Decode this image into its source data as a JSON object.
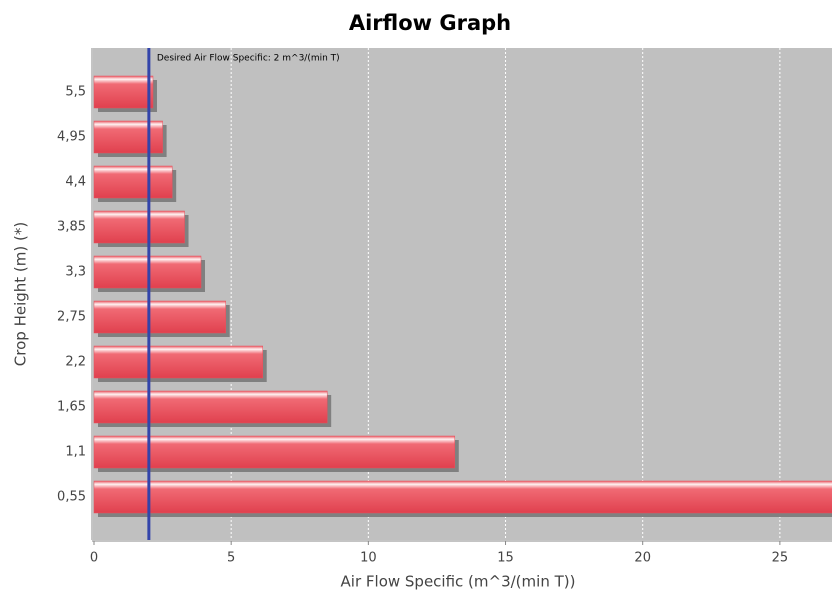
{
  "chart_data": {
    "type": "hbar",
    "title": "Airflow Graph",
    "x_label": "Air Flow Specific (m^3/(min T))",
    "y_label": "Crop Height (m) (*)",
    "categories": [
      "0,55",
      "1,1",
      "1,65",
      "2,2",
      "2,75",
      "3,3",
      "3,85",
      "4,4",
      "4,95",
      "5,5"
    ],
    "values": [
      28,
      13.15,
      8.5,
      6.15,
      4.8,
      3.9,
      3.3,
      2.85,
      2.5,
      2.15
    ],
    "color": "#e8505c",
    "xlim": [
      0,
      26.9
    ],
    "xticks": [
      0,
      5,
      10,
      15,
      20,
      25
    ],
    "grid": true,
    "marker": {
      "value": 2,
      "label": "Desired Air Flow Specific: 2 m^3/(min T)",
      "color": "#3344aa"
    }
  }
}
